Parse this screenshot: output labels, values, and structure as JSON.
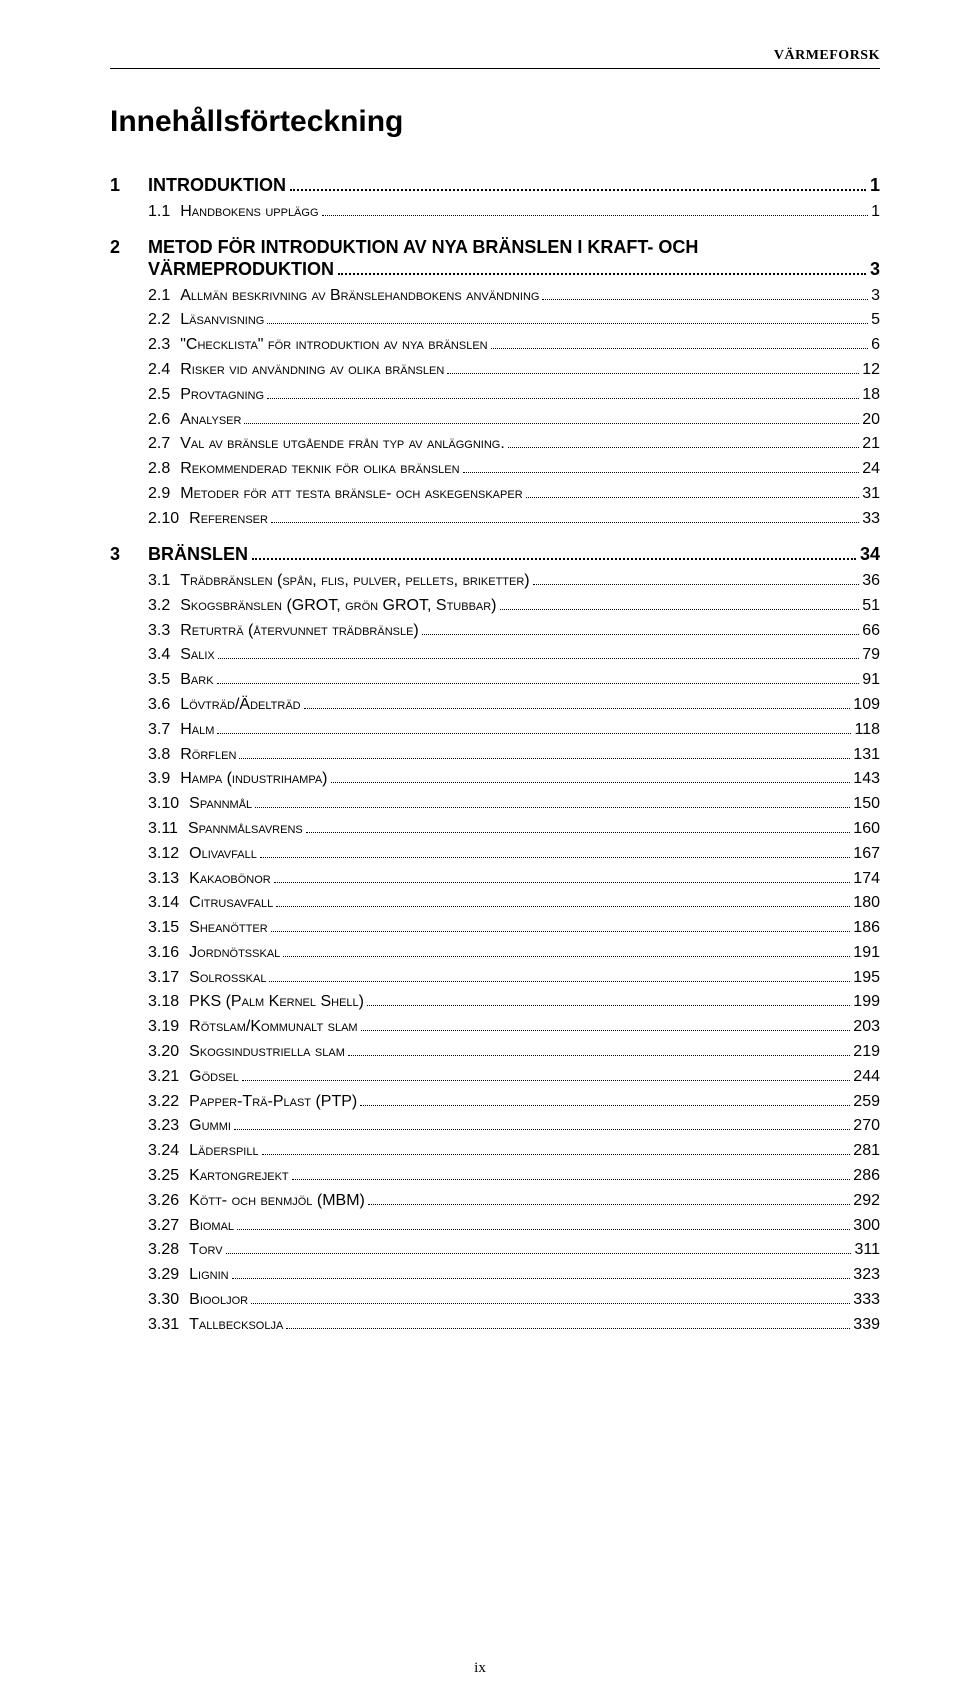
{
  "header": "VÄRMEFORSK",
  "title": "Innehållsförteckning",
  "page_number": "ix",
  "toc": [
    {
      "num": "1",
      "label": "INTRODUKTION",
      "page": "1",
      "subs": [
        {
          "num": "1.1",
          "label": "Handbokens upplägg",
          "page": "1"
        }
      ]
    },
    {
      "num": "2",
      "label": "METOD FÖR INTRODUKTION AV NYA BRÄNSLEN I KRAFT- OCH VÄRMEPRODUKTION",
      "page": "3",
      "subs": [
        {
          "num": "2.1",
          "label": "Allmän beskrivning av Bränslehandbokens användning",
          "page": "3"
        },
        {
          "num": "2.2",
          "label": "Läsanvisning",
          "page": "5"
        },
        {
          "num": "2.3",
          "label": "Checklista\" för introduktion av nya bränslen",
          "page": "6"
        },
        {
          "num": "2.4",
          "label": "Risker vid användning av olika bränslen",
          "page": "12"
        },
        {
          "num": "2.5",
          "label": "Provtagning",
          "page": "18"
        },
        {
          "num": "2.6",
          "label": "Analyser",
          "page": "20"
        },
        {
          "num": "2.7",
          "label": "Val av bränsle utgående från typ av anläggning.",
          "page": "21"
        },
        {
          "num": "2.8",
          "label": "Rekommenderad teknik för olika bränslen",
          "page": "24"
        },
        {
          "num": "2.9",
          "label": "Metoder för att testa bränsle- och askegenskaper",
          "page": "31"
        },
        {
          "num": "2.10",
          "label": "Referenser",
          "page": "33"
        }
      ]
    },
    {
      "num": "3",
      "label": "BRÄNSLEN",
      "page": "34",
      "subs": [
        {
          "num": "3.1",
          "label": "Trädbränslen (spån, flis, pulver, pellets, briketter)",
          "page": "36"
        },
        {
          "num": "3.2",
          "label": "Skogsbränslen (GROT, grön GROT, Stubbar)",
          "page": "51"
        },
        {
          "num": "3.3",
          "label": "Returträ (återvunnet trädbränsle)",
          "page": "66"
        },
        {
          "num": "3.4",
          "label": "Salix",
          "page": "79"
        },
        {
          "num": "3.5",
          "label": "Bark",
          "page": "91"
        },
        {
          "num": "3.6",
          "label": "Lövträd/Ädelträd",
          "page": "109"
        },
        {
          "num": "3.7",
          "label": "Halm",
          "page": "118"
        },
        {
          "num": "3.8",
          "label": "Rörflen",
          "page": "131"
        },
        {
          "num": "3.9",
          "label": "Hampa (industrihampa)",
          "page": "143"
        },
        {
          "num": "3.10",
          "label": "Spannmål",
          "page": "150"
        },
        {
          "num": "3.11",
          "label": "Spannmålsavrens",
          "page": "160"
        },
        {
          "num": "3.12",
          "label": "Olivavfall",
          "page": "167"
        },
        {
          "num": "3.13",
          "label": "Kakaobönor",
          "page": "174"
        },
        {
          "num": "3.14",
          "label": "Citrusavfall",
          "page": "180"
        },
        {
          "num": "3.15",
          "label": "Sheanötter",
          "page": "186"
        },
        {
          "num": "3.16",
          "label": "Jordnötsskal",
          "page": "191"
        },
        {
          "num": "3.17",
          "label": "Solrosskal",
          "page": "195"
        },
        {
          "num": "3.18",
          "label": "PKS (Palm Kernel Shell)",
          "page": "199"
        },
        {
          "num": "3.19",
          "label": "Rötslam/Kommunalt slam",
          "page": "203"
        },
        {
          "num": "3.20",
          "label": "Skogsindustriella slam",
          "page": "219"
        },
        {
          "num": "3.21",
          "label": "Gödsel",
          "page": "244"
        },
        {
          "num": "3.22",
          "label": "Papper-Trä-Plast (PTP)",
          "page": "259"
        },
        {
          "num": "3.23",
          "label": "Gummi",
          "page": "270"
        },
        {
          "num": "3.24",
          "label": "Läderspill",
          "page": "281"
        },
        {
          "num": "3.25",
          "label": "Kartongrejekt",
          "page": "286"
        },
        {
          "num": "3.26",
          "label": "Kött- och benmjöl (MBM)",
          "page": "292"
        },
        {
          "num": "3.27",
          "label": "Biomal",
          "page": "300"
        },
        {
          "num": "3.28",
          "label": "Torv",
          "page": "311"
        },
        {
          "num": "3.29",
          "label": "Lignin",
          "page": "323"
        },
        {
          "num": "3.30",
          "label": "Biooljor",
          "page": "333"
        },
        {
          "num": "3.31",
          "label": "Tallbecksolja",
          "page": "339"
        }
      ]
    }
  ]
}
